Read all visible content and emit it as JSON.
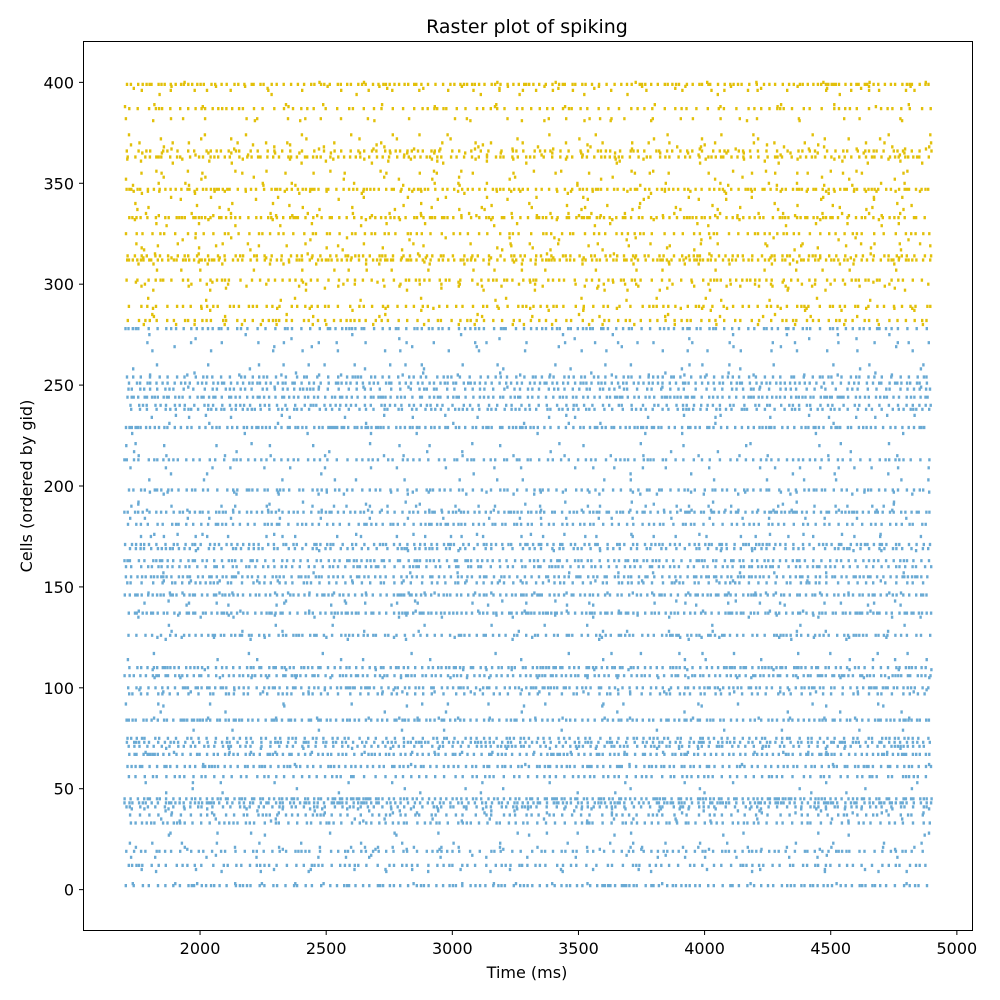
{
  "chart_data": {
    "type": "scatter",
    "title": "Raster plot of spiking",
    "xlabel": "Time (ms)",
    "ylabel": "Cells (ordered by gid)",
    "xlim": [
      1540,
      5060
    ],
    "ylim": [
      -20,
      420
    ],
    "xticks": [
      2000,
      2500,
      3000,
      3500,
      4000,
      4500,
      5000
    ],
    "yticks": [
      0,
      50,
      100,
      150,
      200,
      250,
      300,
      350,
      400
    ],
    "grid": false,
    "legend": "none",
    "time_range": [
      1700,
      4900
    ],
    "series": [
      {
        "color": "#6aaad4",
        "gid_range": [
          0,
          279
        ],
        "tonic_rows": [
          2,
          12,
          19,
          33,
          37,
          41,
          43,
          45,
          56,
          61,
          67,
          71,
          73,
          75,
          84,
          97,
          100,
          106,
          110,
          126,
          137,
          146,
          152,
          155,
          160,
          163,
          169,
          171,
          181,
          187,
          198,
          213,
          229,
          238,
          240,
          244,
          248,
          251,
          254,
          278
        ]
      },
      {
        "color": "#e2c00a",
        "gid_range": [
          280,
          400
        ],
        "tonic_rows": [
          282,
          289,
          302,
          312,
          314,
          325,
          333,
          347,
          363,
          366,
          387,
          399
        ]
      }
    ]
  }
}
